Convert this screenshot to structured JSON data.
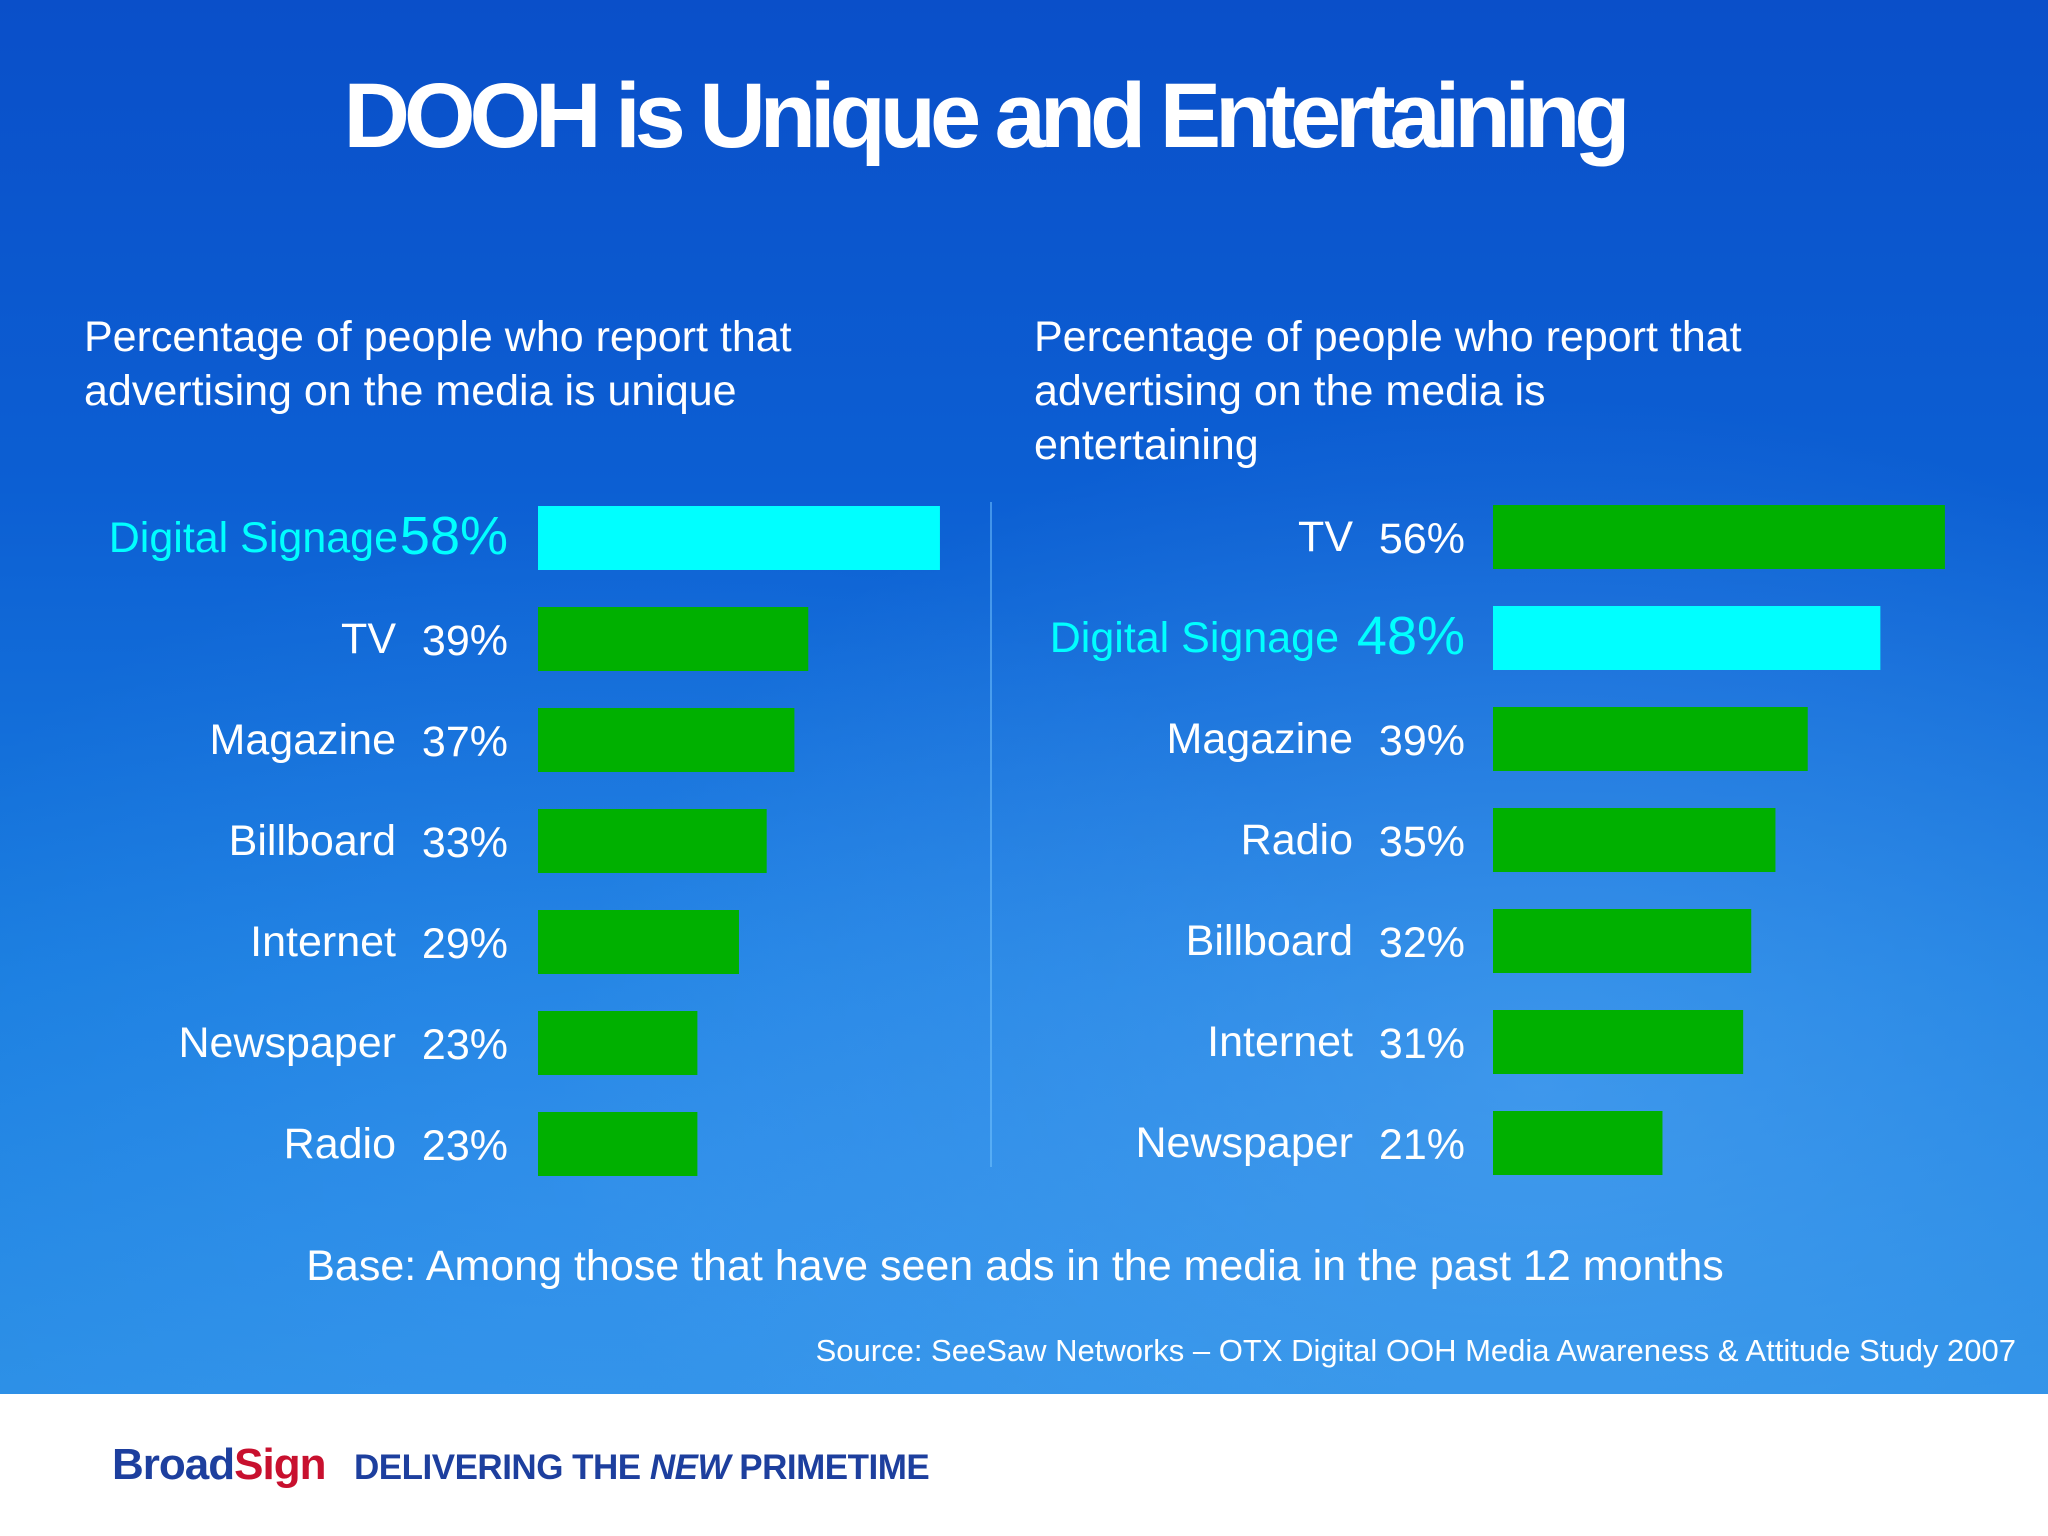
{
  "title": "DOOH is Unique and Entertaining",
  "left_panel": {
    "subtitle_line1": "Percentage of people who report that",
    "subtitle_line2": "advertising on the media is unique"
  },
  "right_panel": {
    "subtitle_line1": "Percentage of people who report that",
    "subtitle_line2": "advertising on the media is",
    "subtitle_line3": "entertaining"
  },
  "base_note": "Base: Among those that have seen ads in the media in the past 12 months",
  "source": "Source: SeeSaw Networks – OTX Digital OOH Media Awareness & Attitude Study 2007",
  "footer": {
    "logo_part1": "Broad",
    "logo_part2": "Sign",
    "tagline_part1": "DELIVERING THE ",
    "tagline_emphasis": "NEW",
    "tagline_part2": " PRIMETIME"
  },
  "colors": {
    "highlight": "#00ffff",
    "bar_default": "#00b000",
    "label_default": "#ffffff"
  },
  "chart_data": [
    {
      "type": "bar",
      "orientation": "horizontal",
      "categories": [
        "Digital Signage",
        "TV",
        "Magazine",
        "Billboard",
        "Internet",
        "Newspaper",
        "Radio"
      ],
      "values": [
        58,
        39,
        37,
        33,
        29,
        23,
        23
      ],
      "value_labels": [
        "58%",
        "39%",
        "37%",
        "33%",
        "29%",
        "23%",
        "23%"
      ],
      "highlight": "Digital Signage",
      "xlim": [
        0,
        60
      ]
    },
    {
      "type": "bar",
      "orientation": "horizontal",
      "categories": [
        "TV",
        "Digital Signage",
        "Magazine",
        "Radio",
        "Billboard",
        "Internet",
        "Newspaper"
      ],
      "values": [
        56,
        48,
        39,
        35,
        32,
        31,
        21
      ],
      "value_labels": [
        "56%",
        "48%",
        "39%",
        "35%",
        "32%",
        "31%",
        "21%"
      ],
      "highlight": "Digital Signage",
      "xlim": [
        0,
        60
      ]
    }
  ]
}
